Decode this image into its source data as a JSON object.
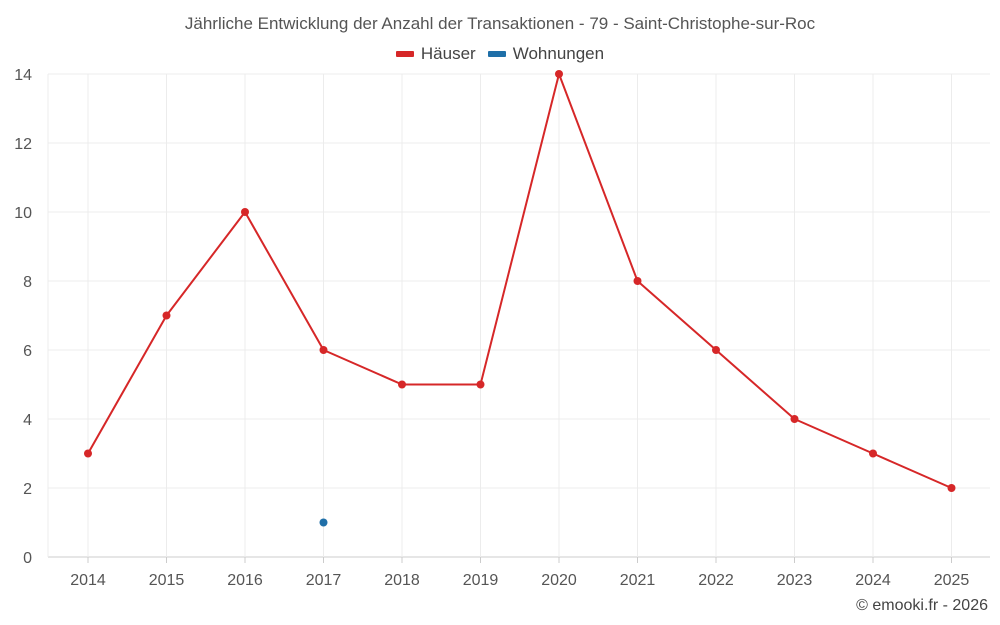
{
  "chart_data": {
    "type": "line",
    "title": "Jährliche Entwicklung der Anzahl der Transaktionen - 79 - Saint-Christophe-sur-Roc",
    "categories": [
      "2014",
      "2015",
      "2016",
      "2017",
      "2018",
      "2019",
      "2020",
      "2021",
      "2022",
      "2023",
      "2024",
      "2025"
    ],
    "series": [
      {
        "name": "Häuser",
        "color": "#d62728",
        "values": [
          3,
          7,
          10,
          6,
          5,
          5,
          14,
          8,
          6,
          4,
          3,
          2
        ]
      },
      {
        "name": "Wohnungen",
        "color": "#1f6fa8",
        "values": [
          null,
          null,
          null,
          1,
          null,
          null,
          null,
          null,
          null,
          null,
          null,
          null
        ]
      }
    ],
    "ylim": [
      0,
      14
    ],
    "yticks": [
      0,
      2,
      4,
      6,
      8,
      10,
      12,
      14
    ],
    "grid": true,
    "legend_position": "top-center",
    "credit": "© emooki.fr - 2026"
  }
}
